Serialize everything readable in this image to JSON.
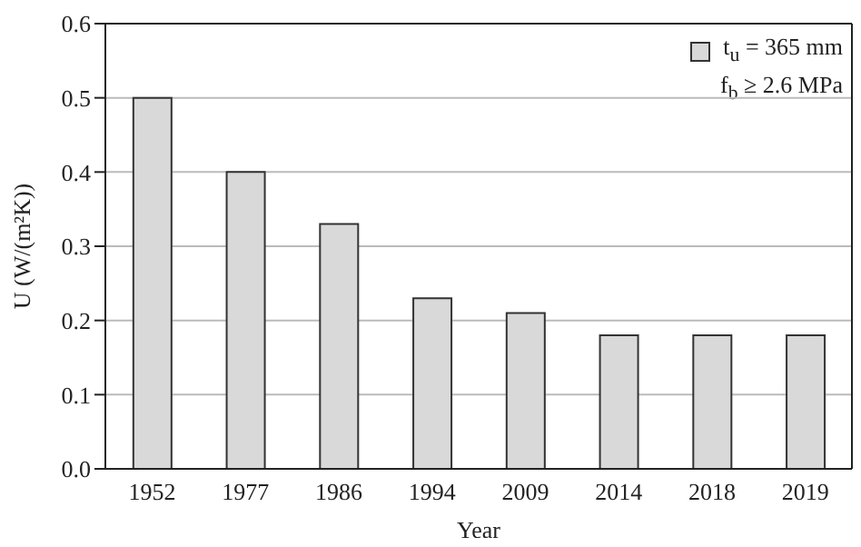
{
  "chart_data": {
    "type": "bar",
    "xlabel": "Year",
    "ylabel": "U (W/(m²K))",
    "categories": [
      "1952",
      "1977",
      "1986",
      "1994",
      "2009",
      "2014",
      "2018",
      "2019"
    ],
    "series": [
      {
        "name": "t$_{u}$ = 365 mm\nf$_{b}$ ≥ 2.6 MPa",
        "color": "#d9d9d9",
        "values": [
          0.5,
          0.4,
          0.33,
          0.23,
          0.21,
          0.18,
          0.18,
          0.18
        ]
      }
    ],
    "ylim": [
      0,
      0.6
    ],
    "yticks": [
      {
        "value": 0,
        "label": "0.0"
      },
      0.1,
      0.2,
      0.3,
      0.4,
      0.5,
      0.6
    ],
    "grid": "y",
    "legend": "top right"
  }
}
